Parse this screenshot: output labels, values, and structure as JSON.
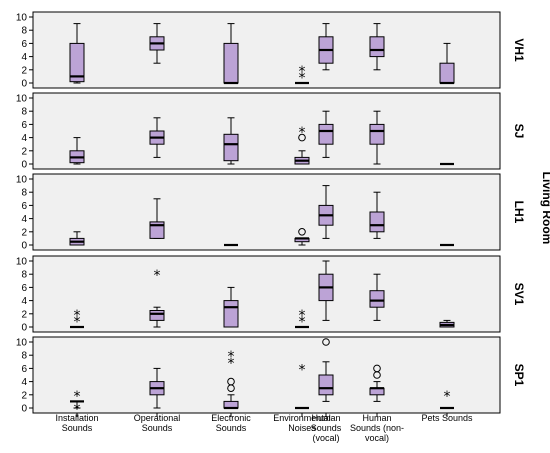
{
  "chart_data": {
    "type": "boxplot",
    "facet_label": "Living Room",
    "categories": [
      [
        "Installation",
        "Sounds"
      ],
      [
        "Operational",
        "Sounds"
      ],
      [
        "Electronic",
        "Sounds"
      ],
      [
        "Environmental",
        "Noises"
      ],
      [
        "Human",
        "Sounds",
        "(vocal)"
      ],
      [
        "Human",
        "Sounds (non-",
        "vocal)"
      ],
      [
        "Pets Sounds"
      ]
    ],
    "ylim": [
      0,
      10
    ],
    "yticks": [
      0,
      2,
      4,
      6,
      8,
      10
    ],
    "colors": {
      "box_fill": "#bca3d6",
      "panel_bg": "#f0f0f0",
      "line": "#000000"
    },
    "panels": [
      {
        "label": "VH1",
        "boxes": [
          {
            "whisker_low": 0,
            "q1": 0.2,
            "median": 1,
            "q3": 6,
            "whisker_high": 9,
            "outliers": []
          },
          {
            "whisker_low": 3,
            "q1": 5,
            "median": 6,
            "q3": 7,
            "whisker_high": 9,
            "outliers": []
          },
          {
            "whisker_low": 0,
            "q1": 0,
            "median": 0,
            "q3": 6,
            "whisker_high": 9,
            "outliers": []
          },
          {
            "whisker_low": 0,
            "q1": 0,
            "median": 0,
            "q3": 0,
            "whisker_high": 0,
            "outliers": [
              {
                "y": 1,
                "mark": "star"
              },
              {
                "y": 2,
                "mark": "star"
              }
            ]
          },
          {
            "whisker_low": 2,
            "q1": 3,
            "median": 5,
            "q3": 7,
            "whisker_high": 9,
            "outliers": []
          },
          {
            "whisker_low": 2,
            "q1": 4,
            "median": 5,
            "q3": 7,
            "whisker_high": 9,
            "outliers": []
          },
          {
            "whisker_low": 0,
            "q1": 0,
            "median": 0,
            "q3": 3,
            "whisker_high": 6,
            "outliers": []
          }
        ]
      },
      {
        "label": "SJ",
        "boxes": [
          {
            "whisker_low": 0,
            "q1": 0.2,
            "median": 1,
            "q3": 2,
            "whisker_high": 4,
            "outliers": []
          },
          {
            "whisker_low": 1,
            "q1": 3,
            "median": 4,
            "q3": 5,
            "whisker_high": 7,
            "outliers": []
          },
          {
            "whisker_low": 0,
            "q1": 0.5,
            "median": 3,
            "q3": 4.5,
            "whisker_high": 7,
            "outliers": []
          },
          {
            "whisker_low": 0,
            "q1": 0,
            "median": 0.5,
            "q3": 1,
            "whisker_high": 2,
            "outliers": [
              {
                "y": 4,
                "mark": "circle"
              },
              {
                "y": 5,
                "mark": "star"
              }
            ]
          },
          {
            "whisker_low": 1,
            "q1": 3,
            "median": 5,
            "q3": 6,
            "whisker_high": 8,
            "outliers": []
          },
          {
            "whisker_low": 0,
            "q1": 3,
            "median": 5,
            "q3": 6,
            "whisker_high": 8,
            "outliers": []
          },
          {
            "whisker_low": 0,
            "q1": 0,
            "median": 0,
            "q3": 0,
            "whisker_high": 0,
            "outliers": []
          }
        ]
      },
      {
        "label": "LH1",
        "boxes": [
          {
            "whisker_low": 0,
            "q1": 0,
            "median": 0.5,
            "q3": 1,
            "whisker_high": 2,
            "outliers": []
          },
          {
            "whisker_low": 1,
            "q1": 1,
            "median": 3,
            "q3": 3.5,
            "whisker_high": 7,
            "outliers": []
          },
          {
            "whisker_low": 0,
            "q1": 0,
            "median": 0,
            "q3": 0,
            "whisker_high": 0,
            "outliers": []
          },
          {
            "whisker_low": 0,
            "q1": 0.5,
            "median": 1,
            "q3": 1,
            "whisker_high": 1,
            "outliers": [
              {
                "y": 2,
                "mark": "circle"
              }
            ]
          },
          {
            "whisker_low": 1,
            "q1": 3,
            "median": 4.5,
            "q3": 6,
            "whisker_high": 9,
            "outliers": []
          },
          {
            "whisker_low": 1,
            "q1": 2,
            "median": 3,
            "q3": 5,
            "whisker_high": 8,
            "outliers": []
          },
          {
            "whisker_low": 0,
            "q1": 0,
            "median": 0,
            "q3": 0,
            "whisker_high": 0,
            "outliers": []
          }
        ]
      },
      {
        "label": "SV1",
        "boxes": [
          {
            "whisker_low": 0,
            "q1": 0,
            "median": 0,
            "q3": 0,
            "whisker_high": 0,
            "outliers": [
              {
                "y": 1,
                "mark": "star"
              },
              {
                "y": 2,
                "mark": "star"
              }
            ]
          },
          {
            "whisker_low": 0,
            "q1": 1,
            "median": 2,
            "q3": 2.5,
            "whisker_high": 3,
            "outliers": [
              {
                "y": 8,
                "mark": "star"
              }
            ]
          },
          {
            "whisker_low": 0,
            "q1": 0,
            "median": 3,
            "q3": 4,
            "whisker_high": 6,
            "outliers": []
          },
          {
            "whisker_low": 0,
            "q1": 0,
            "median": 0,
            "q3": 0,
            "whisker_high": 0,
            "outliers": [
              {
                "y": 1,
                "mark": "star"
              },
              {
                "y": 2,
                "mark": "star"
              }
            ]
          },
          {
            "whisker_low": 1,
            "q1": 4,
            "median": 6,
            "q3": 8,
            "whisker_high": 10,
            "outliers": []
          },
          {
            "whisker_low": 1,
            "q1": 3,
            "median": 4,
            "q3": 5.5,
            "whisker_high": 8,
            "outliers": []
          },
          {
            "whisker_low": 0,
            "q1": 0,
            "median": 0.3,
            "q3": 0.7,
            "whisker_high": 1,
            "outliers": []
          }
        ]
      },
      {
        "label": "SP1",
        "boxes": [
          {
            "whisker_low": 0,
            "q1": 1,
            "median": 1,
            "q3": 1,
            "whisker_high": 1,
            "outliers": [
              {
                "y": 0,
                "mark": "star"
              },
              {
                "y": 2,
                "mark": "star"
              }
            ]
          },
          {
            "whisker_low": 0,
            "q1": 2,
            "median": 3,
            "q3": 4,
            "whisker_high": 6,
            "outliers": []
          },
          {
            "whisker_low": 0,
            "q1": 0,
            "median": 0,
            "q3": 1,
            "whisker_high": 2,
            "outliers": [
              {
                "y": 3,
                "mark": "circle"
              },
              {
                "y": 4,
                "mark": "circle"
              },
              {
                "y": 7,
                "mark": "star"
              },
              {
                "y": 8,
                "mark": "star"
              }
            ]
          },
          {
            "whisker_low": 0,
            "q1": 0,
            "median": 0,
            "q3": 0,
            "whisker_high": 0,
            "outliers": [
              {
                "y": 6,
                "mark": "star"
              }
            ]
          },
          {
            "whisker_low": 1,
            "q1": 2,
            "median": 3,
            "q3": 5,
            "whisker_high": 7,
            "outliers": [
              {
                "y": 10,
                "mark": "circle"
              }
            ]
          },
          {
            "whisker_low": 1,
            "q1": 2,
            "median": 3,
            "q3": 3,
            "whisker_high": 4,
            "outliers": [
              {
                "y": 5,
                "mark": "circle"
              },
              {
                "y": 6,
                "mark": "circle"
              }
            ]
          },
          {
            "whisker_low": 0,
            "q1": 0,
            "median": 0,
            "q3": 0,
            "whisker_high": 0,
            "outliers": [
              {
                "y": 2,
                "mark": "star"
              }
            ]
          }
        ]
      }
    ]
  }
}
